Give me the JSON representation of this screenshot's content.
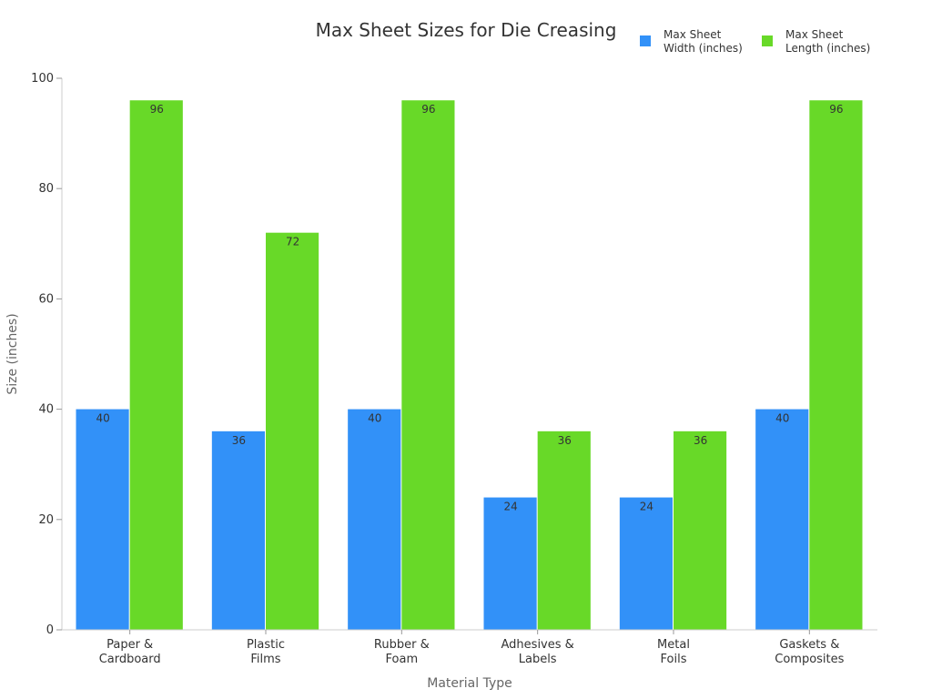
{
  "chart_data": {
    "type": "bar",
    "title": "Max Sheet Sizes for Die Creasing",
    "xlabel": "Material Type",
    "ylabel": "Size (inches)",
    "ylim": [
      0,
      100
    ],
    "yticks": [
      0,
      20,
      40,
      60,
      80,
      100
    ],
    "grid": false,
    "legend_position": "top-right",
    "categories": [
      [
        "Paper &",
        "Cardboard"
      ],
      [
        "Plastic",
        "Films"
      ],
      [
        "Rubber &",
        "Foam"
      ],
      [
        "Adhesives &",
        "Labels"
      ],
      [
        "Metal",
        "Foils"
      ],
      [
        "Gaskets &",
        "Composites"
      ]
    ],
    "series": [
      {
        "name": [
          "Max Sheet",
          "Width (inches)"
        ],
        "color": "#3291F8",
        "values": [
          40,
          36,
          40,
          24,
          24,
          40
        ]
      },
      {
        "name": [
          "Max Sheet",
          "Length (inches)"
        ],
        "color": "#68D928",
        "values": [
          96,
          72,
          96,
          36,
          36,
          96
        ]
      }
    ]
  }
}
